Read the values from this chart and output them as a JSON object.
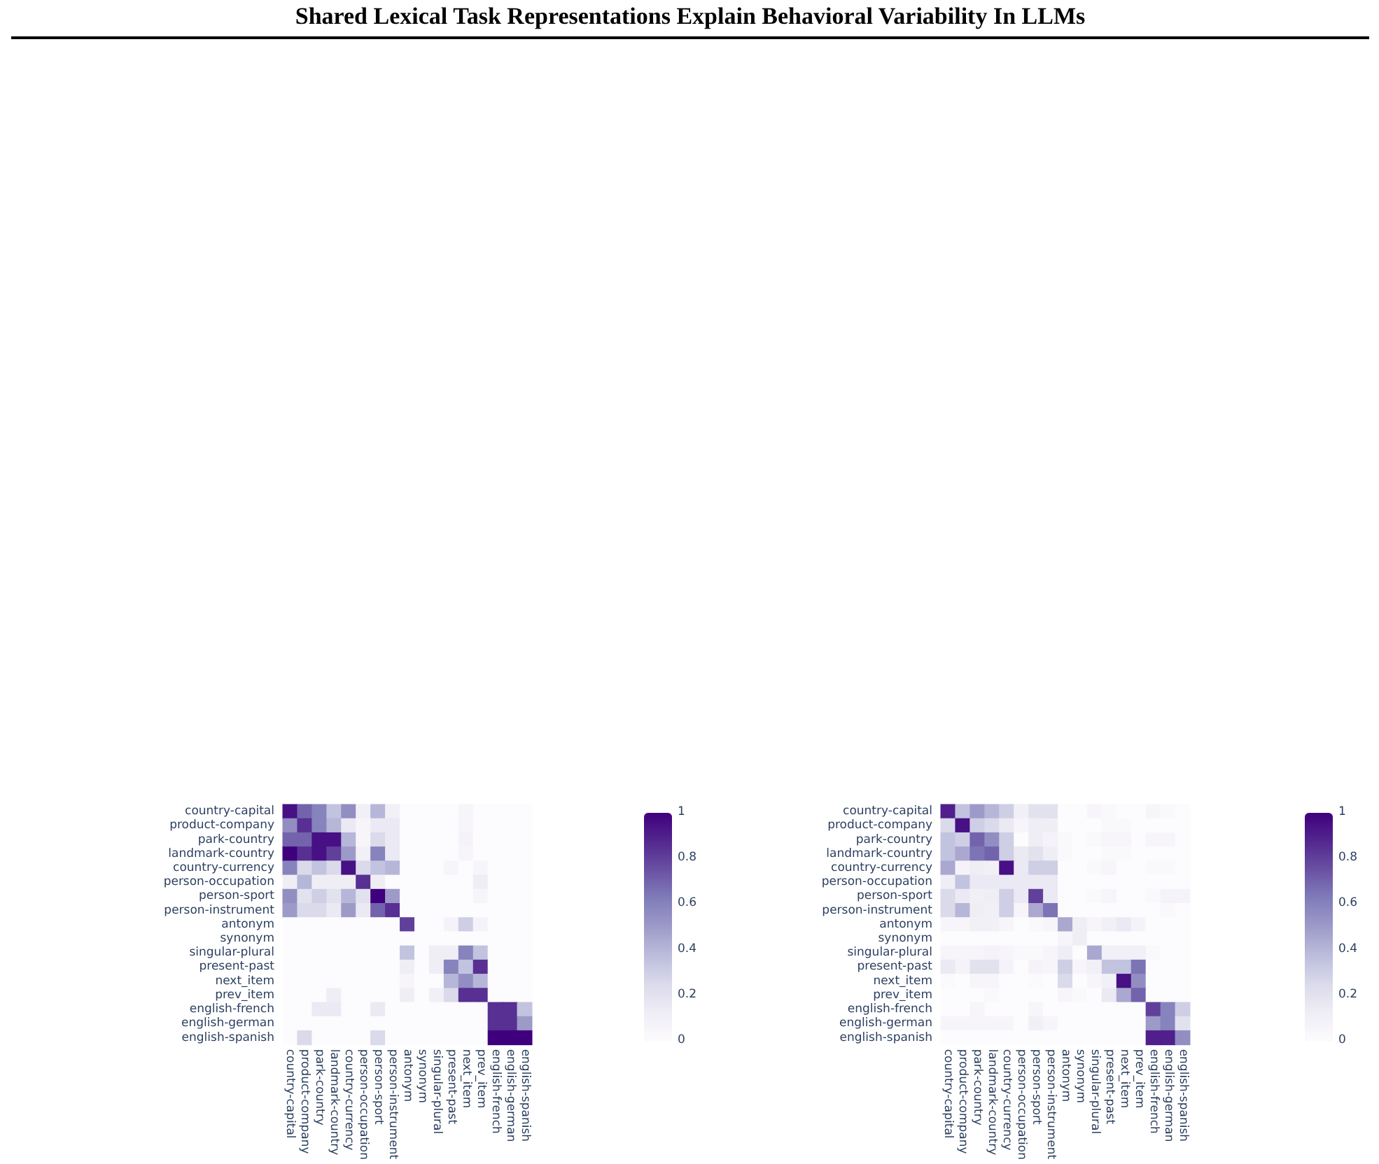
{
  "chart_data": [
    {
      "type": "heatmap",
      "title": "Shared Lexical Task Representations Explain Behavioral Variability In LLMs",
      "categories": [
        "country-capital",
        "product-company",
        "park-country",
        "landmark-country",
        "country-currency",
        "person-occupation",
        "person-sport",
        "person-instrument",
        "antonym",
        "synonym",
        "singular-plural",
        "present-past",
        "next_item",
        "prev_item",
        "english-french",
        "english-german",
        "english-spanish"
      ],
      "y_categories": [
        "country-capital",
        "product-company",
        "park-country",
        "landmark-country",
        "country-currency",
        "person-occupation",
        "person-sport",
        "person-instrument",
        "antonym",
        "synonym",
        "singular-plural",
        "present-past",
        "next_item",
        "prev_item",
        "english-french",
        "english-german",
        "english-spanish"
      ],
      "cells": [
        [
          0.95,
          0.7,
          0.6,
          0.35,
          0.55,
          0.1,
          0.4,
          0.1,
          0,
          0,
          0,
          0,
          0.05,
          0,
          0,
          0,
          0
        ],
        [
          0.55,
          0.85,
          0.6,
          0.4,
          0.15,
          0.05,
          0.15,
          0.15,
          0,
          0,
          0,
          0,
          0.05,
          0,
          0,
          0,
          0
        ],
        [
          0.7,
          0.7,
          0.95,
          0.95,
          0.4,
          0.05,
          0.25,
          0.15,
          0,
          0,
          0,
          0,
          0.07,
          0,
          0,
          0,
          0
        ],
        [
          1,
          0.85,
          0.95,
          0.8,
          0.5,
          0.1,
          0.6,
          0.15,
          0,
          0,
          0,
          0,
          0.05,
          0,
          0,
          0,
          0
        ],
        [
          0.6,
          0.25,
          0.35,
          0.25,
          0.95,
          0.25,
          0.35,
          0.4,
          0,
          0,
          0,
          0.05,
          0,
          0.05,
          0,
          0,
          0
        ],
        [
          0.12,
          0.4,
          0.12,
          0.12,
          0.12,
          0.85,
          0.12,
          0,
          0,
          0,
          0,
          0,
          0,
          0.12,
          0,
          0,
          0
        ],
        [
          0.55,
          0.2,
          0.3,
          0.2,
          0.4,
          0.2,
          1,
          0.5,
          0,
          0,
          0,
          0,
          0,
          0.05,
          0,
          0,
          0
        ],
        [
          0.5,
          0.25,
          0.25,
          0.15,
          0.5,
          0.15,
          0.7,
          0.85,
          0,
          0,
          0,
          0,
          0,
          0,
          0,
          0,
          0
        ],
        [
          0,
          0,
          0,
          0,
          0,
          0,
          0,
          0,
          0.8,
          0,
          0,
          0.07,
          0.3,
          0.07,
          0,
          0,
          0
        ],
        [
          0,
          0,
          0,
          0,
          0,
          0,
          0,
          0,
          0,
          0,
          0,
          0,
          0,
          0,
          0,
          0,
          0
        ],
        [
          0,
          0,
          0,
          0,
          0,
          0,
          0,
          0,
          0.35,
          0,
          0.12,
          0.12,
          0.6,
          0.35,
          0,
          0,
          0
        ],
        [
          0,
          0,
          0,
          0,
          0,
          0,
          0,
          0,
          0.12,
          0,
          0.12,
          0.6,
          0.35,
          0.85,
          0,
          0,
          0
        ],
        [
          0,
          0,
          0,
          0,
          0,
          0,
          0,
          0,
          0.05,
          0,
          0,
          0.4,
          0.55,
          0.4,
          0,
          0,
          0
        ],
        [
          0,
          0,
          0,
          0.12,
          0,
          0,
          0,
          0,
          0.12,
          0,
          0.1,
          0.25,
          0.85,
          0.85,
          0,
          0,
          0
        ],
        [
          0,
          0,
          0.15,
          0.15,
          0,
          0,
          0.15,
          0,
          0,
          0,
          0,
          0,
          0,
          0,
          0.85,
          0.85,
          0.35
        ],
        [
          0,
          0,
          0,
          0,
          0,
          0,
          0,
          0,
          0,
          0,
          0,
          0,
          0,
          0,
          0.85,
          0.85,
          0.5
        ],
        [
          0,
          0.25,
          0,
          0,
          0,
          0,
          0.25,
          0,
          0,
          0,
          0,
          0,
          0,
          0,
          1,
          1,
          1
        ]
      ],
      "clim": [
        0,
        1
      ],
      "cticks": [
        0,
        0.2,
        0.4,
        0.6,
        0.8,
        1
      ]
    },
    {
      "type": "heatmap",
      "categories": [
        "country-capital",
        "product-company",
        "park-country",
        "landmark-country",
        "country-currency",
        "person-occupation",
        "person-sport",
        "person-instrument",
        "antonym",
        "synonym",
        "singular-plural",
        "present-past",
        "next_item",
        "prev_item",
        "english-french",
        "english-german",
        "english-spanish"
      ],
      "y_categories": [
        "country-capital",
        "product-company",
        "park-country",
        "landmark-country",
        "country-currency",
        "person-occupation",
        "person-sport",
        "person-instrument",
        "antonym",
        "synonym",
        "singular-plural",
        "present-past",
        "next_item",
        "prev_item",
        "english-french",
        "english-german",
        "english-spanish"
      ],
      "cells": [
        [
          0.9,
          0.35,
          0.5,
          0.4,
          0.3,
          0.1,
          0.2,
          0.2,
          0,
          0,
          0.05,
          0.03,
          0,
          0,
          0.05,
          0.03,
          0
        ],
        [
          0.25,
          0.95,
          0.3,
          0.25,
          0.15,
          0.05,
          0.12,
          0.12,
          0,
          0,
          0,
          0.03,
          0.03,
          0,
          0,
          0,
          0
        ],
        [
          0.35,
          0.3,
          0.7,
          0.55,
          0.3,
          0,
          0.12,
          0.07,
          0.03,
          0,
          0.03,
          0.05,
          0.05,
          0,
          0.05,
          0.05,
          0
        ],
        [
          0.35,
          0.45,
          0.65,
          0.7,
          0.3,
          0.15,
          0.2,
          0.12,
          0.03,
          0,
          0,
          0.03,
          0.03,
          0,
          0,
          0,
          0
        ],
        [
          0.45,
          0.07,
          0.12,
          0.1,
          0.95,
          0.15,
          0.3,
          0.3,
          0,
          0,
          0.03,
          0.05,
          0,
          0,
          0.03,
          0.03,
          0
        ],
        [
          0.12,
          0.35,
          0.15,
          0.15,
          0.15,
          0.15,
          0.15,
          0.15,
          0,
          0,
          0,
          0,
          0,
          0,
          0,
          0,
          0
        ],
        [
          0.25,
          0.15,
          0.1,
          0.12,
          0.3,
          0.15,
          0.8,
          0.15,
          0,
          0,
          0.03,
          0.05,
          0,
          0,
          0.03,
          0.07,
          0.07
        ],
        [
          0.25,
          0.4,
          0.12,
          0.1,
          0.3,
          0.05,
          0.45,
          0.65,
          0,
          0,
          0,
          0,
          0,
          0,
          0,
          0.03,
          0
        ],
        [
          0.05,
          0.05,
          0.1,
          0.1,
          0.05,
          0,
          0.03,
          0.05,
          0.45,
          0.12,
          0.05,
          0.1,
          0.15,
          0.07,
          0,
          0,
          0
        ],
        [
          0,
          0,
          0,
          0,
          0,
          0,
          0,
          0,
          0.05,
          0.12,
          0,
          0,
          0,
          0,
          0,
          0,
          0
        ],
        [
          0.05,
          0.05,
          0.05,
          0.07,
          0.05,
          0.03,
          0.03,
          0.05,
          0.12,
          0,
          0.45,
          0.1,
          0.1,
          0.1,
          0.03,
          0,
          0
        ],
        [
          0.15,
          0.07,
          0.2,
          0.2,
          0.07,
          0,
          0.07,
          0.05,
          0.3,
          0.05,
          0.1,
          0.35,
          0.35,
          0.65,
          0,
          0,
          0
        ],
        [
          0.02,
          0,
          0.05,
          0.05,
          0,
          0,
          0.02,
          0,
          0.25,
          0,
          0.05,
          0.1,
          0.95,
          0.55,
          0,
          0,
          0
        ],
        [
          0,
          0,
          0,
          0.03,
          0,
          0,
          0,
          0,
          0.05,
          0.03,
          0,
          0.15,
          0.45,
          0.7,
          0,
          0,
          0
        ],
        [
          0,
          0,
          0.05,
          0,
          0,
          0,
          0.05,
          0,
          0,
          0,
          0,
          0,
          0,
          0,
          0.8,
          0.6,
          0.3
        ],
        [
          0.05,
          0.05,
          0.05,
          0.05,
          0.05,
          0,
          0.1,
          0.05,
          0,
          0,
          0,
          0,
          0,
          0,
          0.5,
          0.6,
          0.2
        ],
        [
          0,
          0,
          0,
          0,
          0,
          0,
          0,
          0,
          0,
          0,
          0,
          0,
          0,
          0,
          0.9,
          0.9,
          0.55
        ]
      ],
      "clim": [
        0,
        1
      ],
      "cticks": [
        0,
        0.2,
        0.4,
        0.6,
        0.8,
        1
      ]
    }
  ]
}
